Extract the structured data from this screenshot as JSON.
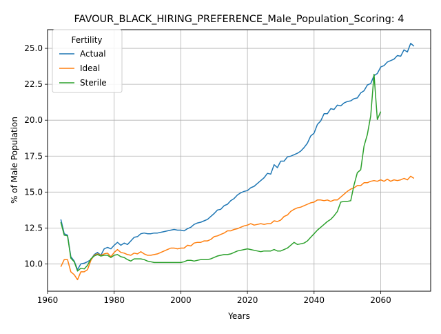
{
  "chart_data": {
    "type": "line",
    "title": "FAVOUR_BLACK_HIRING_PREFERENCE_Male_Population_Scoring: 4",
    "xlabel": "Years",
    "ylabel": "% of Male Population",
    "xlim": [
      1960,
      2075
    ],
    "ylim": [
      8.1,
      26.3
    ],
    "xticks": [
      1960,
      1980,
      2000,
      2020,
      2040,
      2060
    ],
    "yticks": [
      10.0,
      12.5,
      15.0,
      17.5,
      20.0,
      22.5,
      25.0
    ],
    "grid": true,
    "legend": {
      "title": "Fertility",
      "position": "top-left"
    },
    "series": [
      {
        "name": "Actual",
        "color": "#1f77b4",
        "points": [
          [
            1964,
            13.1
          ],
          [
            1965,
            12.1
          ],
          [
            1966,
            12.0
          ],
          [
            1967,
            10.5
          ],
          [
            1968,
            10.2
          ],
          [
            1969,
            9.6
          ],
          [
            1970,
            10.0
          ],
          [
            1971,
            10.05
          ],
          [
            1972,
            10.15
          ],
          [
            1973,
            10.3
          ],
          [
            1974,
            10.65
          ],
          [
            1975,
            10.8
          ],
          [
            1976,
            10.6
          ],
          [
            1977,
            11.05
          ],
          [
            1978,
            11.15
          ],
          [
            1979,
            11.05
          ],
          [
            1980,
            11.3
          ],
          [
            1981,
            11.5
          ],
          [
            1982,
            11.3
          ],
          [
            1983,
            11.45
          ],
          [
            1984,
            11.35
          ],
          [
            1985,
            11.6
          ],
          [
            1986,
            11.85
          ],
          [
            1987,
            11.9
          ],
          [
            1988,
            12.1
          ],
          [
            1989,
            12.15
          ],
          [
            1990,
            12.1
          ],
          [
            1991,
            12.1
          ],
          [
            1992,
            12.15
          ],
          [
            1993,
            12.15
          ],
          [
            1994,
            12.2
          ],
          [
            1995,
            12.25
          ],
          [
            1996,
            12.3
          ],
          [
            1997,
            12.35
          ],
          [
            1998,
            12.4
          ],
          [
            1999,
            12.35
          ],
          [
            2000,
            12.35
          ],
          [
            2001,
            12.3
          ],
          [
            2002,
            12.45
          ],
          [
            2003,
            12.55
          ],
          [
            2004,
            12.75
          ],
          [
            2005,
            12.85
          ],
          [
            2006,
            12.9
          ],
          [
            2007,
            13.0
          ],
          [
            2008,
            13.1
          ],
          [
            2009,
            13.3
          ],
          [
            2010,
            13.5
          ],
          [
            2011,
            13.75
          ],
          [
            2012,
            13.8
          ],
          [
            2013,
            14.05
          ],
          [
            2014,
            14.15
          ],
          [
            2015,
            14.4
          ],
          [
            2016,
            14.55
          ],
          [
            2017,
            14.8
          ],
          [
            2018,
            14.95
          ],
          [
            2019,
            15.05
          ],
          [
            2020,
            15.1
          ],
          [
            2021,
            15.3
          ],
          [
            2022,
            15.4
          ],
          [
            2023,
            15.6
          ],
          [
            2024,
            15.8
          ],
          [
            2025,
            16.0
          ],
          [
            2026,
            16.3
          ],
          [
            2027,
            16.25
          ],
          [
            2028,
            16.9
          ],
          [
            2029,
            16.7
          ],
          [
            2030,
            17.15
          ],
          [
            2031,
            17.15
          ],
          [
            2032,
            17.45
          ],
          [
            2033,
            17.5
          ],
          [
            2034,
            17.6
          ],
          [
            2035,
            17.7
          ],
          [
            2036,
            17.85
          ],
          [
            2037,
            18.1
          ],
          [
            2038,
            18.4
          ],
          [
            2039,
            18.9
          ],
          [
            2040,
            19.1
          ],
          [
            2041,
            19.7
          ],
          [
            2042,
            19.95
          ],
          [
            2043,
            20.45
          ],
          [
            2044,
            20.45
          ],
          [
            2045,
            20.8
          ],
          [
            2046,
            20.75
          ],
          [
            2047,
            21.05
          ],
          [
            2048,
            21.0
          ],
          [
            2049,
            21.2
          ],
          [
            2050,
            21.3
          ],
          [
            2051,
            21.35
          ],
          [
            2052,
            21.5
          ],
          [
            2053,
            21.55
          ],
          [
            2054,
            21.9
          ],
          [
            2055,
            22.05
          ],
          [
            2056,
            22.45
          ],
          [
            2057,
            22.55
          ],
          [
            2058,
            23.1
          ],
          [
            2059,
            23.25
          ],
          [
            2060,
            23.7
          ],
          [
            2061,
            23.8
          ],
          [
            2062,
            24.05
          ],
          [
            2063,
            24.15
          ],
          [
            2064,
            24.25
          ],
          [
            2065,
            24.5
          ],
          [
            2066,
            24.45
          ],
          [
            2067,
            24.9
          ],
          [
            2068,
            24.75
          ],
          [
            2069,
            25.35
          ],
          [
            2070,
            25.15
          ]
        ]
      },
      {
        "name": "Ideal",
        "color": "#ff7f0e",
        "points": [
          [
            1964,
            9.8
          ],
          [
            1965,
            10.3
          ],
          [
            1966,
            10.3
          ],
          [
            1967,
            9.45
          ],
          [
            1968,
            9.25
          ],
          [
            1969,
            8.9
          ],
          [
            1970,
            9.45
          ],
          [
            1971,
            9.45
          ],
          [
            1972,
            9.6
          ],
          [
            1973,
            10.25
          ],
          [
            1974,
            10.6
          ],
          [
            1975,
            10.7
          ],
          [
            1976,
            10.6
          ],
          [
            1977,
            10.7
          ],
          [
            1978,
            10.75
          ],
          [
            1979,
            10.5
          ],
          [
            1980,
            10.8
          ],
          [
            1981,
            11.0
          ],
          [
            1982,
            10.8
          ],
          [
            1983,
            10.75
          ],
          [
            1984,
            10.65
          ],
          [
            1985,
            10.6
          ],
          [
            1986,
            10.75
          ],
          [
            1987,
            10.7
          ],
          [
            1988,
            10.85
          ],
          [
            1989,
            10.7
          ],
          [
            1990,
            10.6
          ],
          [
            1991,
            10.6
          ],
          [
            1992,
            10.65
          ],
          [
            1993,
            10.7
          ],
          [
            1994,
            10.8
          ],
          [
            1995,
            10.9
          ],
          [
            1996,
            11.0
          ],
          [
            1997,
            11.1
          ],
          [
            1998,
            11.1
          ],
          [
            1999,
            11.05
          ],
          [
            2000,
            11.1
          ],
          [
            2001,
            11.1
          ],
          [
            2002,
            11.3
          ],
          [
            2003,
            11.25
          ],
          [
            2004,
            11.45
          ],
          [
            2005,
            11.5
          ],
          [
            2006,
            11.5
          ],
          [
            2007,
            11.6
          ],
          [
            2008,
            11.6
          ],
          [
            2009,
            11.7
          ],
          [
            2010,
            11.9
          ],
          [
            2011,
            11.95
          ],
          [
            2012,
            12.05
          ],
          [
            2013,
            12.15
          ],
          [
            2014,
            12.3
          ],
          [
            2015,
            12.3
          ],
          [
            2016,
            12.4
          ],
          [
            2017,
            12.45
          ],
          [
            2018,
            12.55
          ],
          [
            2019,
            12.65
          ],
          [
            2020,
            12.7
          ],
          [
            2021,
            12.8
          ],
          [
            2022,
            12.7
          ],
          [
            2023,
            12.75
          ],
          [
            2024,
            12.8
          ],
          [
            2025,
            12.75
          ],
          [
            2026,
            12.8
          ],
          [
            2027,
            12.8
          ],
          [
            2028,
            13.0
          ],
          [
            2029,
            12.95
          ],
          [
            2030,
            13.05
          ],
          [
            2031,
            13.3
          ],
          [
            2032,
            13.4
          ],
          [
            2033,
            13.65
          ],
          [
            2034,
            13.8
          ],
          [
            2035,
            13.9
          ],
          [
            2036,
            13.95
          ],
          [
            2037,
            14.05
          ],
          [
            2038,
            14.15
          ],
          [
            2039,
            14.25
          ],
          [
            2040,
            14.3
          ],
          [
            2041,
            14.45
          ],
          [
            2042,
            14.45
          ],
          [
            2043,
            14.4
          ],
          [
            2044,
            14.45
          ],
          [
            2045,
            14.35
          ],
          [
            2046,
            14.45
          ],
          [
            2047,
            14.45
          ],
          [
            2048,
            14.65
          ],
          [
            2049,
            14.85
          ],
          [
            2050,
            15.05
          ],
          [
            2051,
            15.2
          ],
          [
            2052,
            15.3
          ],
          [
            2053,
            15.45
          ],
          [
            2054,
            15.45
          ],
          [
            2055,
            15.65
          ],
          [
            2056,
            15.65
          ],
          [
            2057,
            15.75
          ],
          [
            2058,
            15.8
          ],
          [
            2059,
            15.75
          ],
          [
            2060,
            15.85
          ],
          [
            2061,
            15.75
          ],
          [
            2062,
            15.9
          ],
          [
            2063,
            15.75
          ],
          [
            2064,
            15.85
          ],
          [
            2065,
            15.8
          ],
          [
            2066,
            15.85
          ],
          [
            2067,
            15.95
          ],
          [
            2068,
            15.85
          ],
          [
            2069,
            16.1
          ],
          [
            2070,
            15.95
          ]
        ]
      },
      {
        "name": "Sterile",
        "color": "#2ca02c",
        "points": [
          [
            1964,
            12.9
          ],
          [
            1965,
            12.0
          ],
          [
            1966,
            11.95
          ],
          [
            1967,
            10.4
          ],
          [
            1968,
            10.15
          ],
          [
            1969,
            9.5
          ],
          [
            1970,
            9.7
          ],
          [
            1971,
            9.65
          ],
          [
            1972,
            9.9
          ],
          [
            1973,
            10.35
          ],
          [
            1974,
            10.55
          ],
          [
            1975,
            10.65
          ],
          [
            1976,
            10.55
          ],
          [
            1977,
            10.6
          ],
          [
            1978,
            10.6
          ],
          [
            1979,
            10.45
          ],
          [
            1980,
            10.6
          ],
          [
            1981,
            10.65
          ],
          [
            1982,
            10.5
          ],
          [
            1983,
            10.45
          ],
          [
            1984,
            10.3
          ],
          [
            1985,
            10.2
          ],
          [
            1986,
            10.35
          ],
          [
            1987,
            10.35
          ],
          [
            1988,
            10.35
          ],
          [
            1989,
            10.3
          ],
          [
            1990,
            10.2
          ],
          [
            1991,
            10.15
          ],
          [
            1992,
            10.1
          ],
          [
            1993,
            10.1
          ],
          [
            1994,
            10.1
          ],
          [
            1995,
            10.1
          ],
          [
            1996,
            10.1
          ],
          [
            1997,
            10.1
          ],
          [
            1998,
            10.1
          ],
          [
            1999,
            10.1
          ],
          [
            2000,
            10.1
          ],
          [
            2001,
            10.15
          ],
          [
            2002,
            10.25
          ],
          [
            2003,
            10.25
          ],
          [
            2004,
            10.2
          ],
          [
            2005,
            10.25
          ],
          [
            2006,
            10.3
          ],
          [
            2007,
            10.3
          ],
          [
            2008,
            10.3
          ],
          [
            2009,
            10.35
          ],
          [
            2010,
            10.45
          ],
          [
            2011,
            10.55
          ],
          [
            2012,
            10.6
          ],
          [
            2013,
            10.65
          ],
          [
            2014,
            10.65
          ],
          [
            2015,
            10.7
          ],
          [
            2016,
            10.8
          ],
          [
            2017,
            10.9
          ],
          [
            2018,
            10.95
          ],
          [
            2019,
            11.0
          ],
          [
            2020,
            11.05
          ],
          [
            2021,
            11.0
          ],
          [
            2022,
            10.95
          ],
          [
            2023,
            10.9
          ],
          [
            2024,
            10.85
          ],
          [
            2025,
            10.9
          ],
          [
            2026,
            10.9
          ],
          [
            2027,
            10.9
          ],
          [
            2028,
            11.0
          ],
          [
            2029,
            10.9
          ],
          [
            2030,
            10.9
          ],
          [
            2031,
            11.0
          ],
          [
            2032,
            11.1
          ],
          [
            2033,
            11.3
          ],
          [
            2034,
            11.5
          ],
          [
            2035,
            11.35
          ],
          [
            2036,
            11.4
          ],
          [
            2037,
            11.45
          ],
          [
            2038,
            11.6
          ],
          [
            2039,
            11.85
          ],
          [
            2040,
            12.1
          ],
          [
            2041,
            12.35
          ],
          [
            2042,
            12.55
          ],
          [
            2043,
            12.75
          ],
          [
            2044,
            12.95
          ],
          [
            2045,
            13.1
          ],
          [
            2046,
            13.35
          ],
          [
            2047,
            13.65
          ],
          [
            2048,
            14.3
          ],
          [
            2049,
            14.35
          ],
          [
            2050,
            14.35
          ],
          [
            2051,
            14.4
          ],
          [
            2052,
            15.5
          ],
          [
            2053,
            16.35
          ],
          [
            2054,
            16.55
          ],
          [
            2055,
            18.2
          ],
          [
            2056,
            19.0
          ],
          [
            2057,
            20.3
          ],
          [
            2058,
            23.2
          ],
          [
            2059,
            20.05
          ],
          [
            2060,
            20.6
          ]
        ]
      }
    ]
  }
}
